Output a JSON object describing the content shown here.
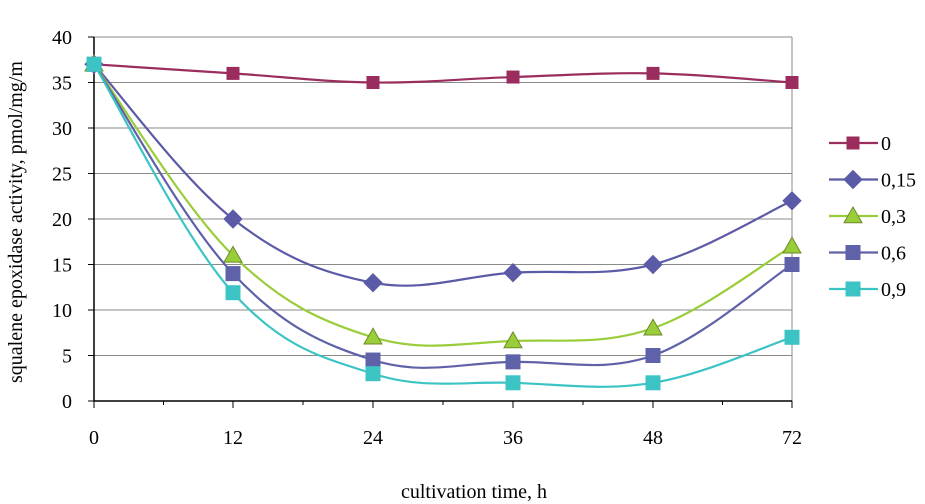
{
  "chart_data": {
    "type": "line",
    "x_categories": [
      "0",
      "12",
      "24",
      "36",
      "48",
      "72"
    ],
    "xlabel": "cultivation time, h",
    "ylabel": "squalene epoxidase activity, pmol/mg/m",
    "ylim": [
      0,
      40
    ],
    "yticks": [
      "0",
      "5",
      "10",
      "15",
      "20",
      "25",
      "30",
      "35",
      "40"
    ],
    "grid": "horizontal",
    "legend_position": "right",
    "smooth": true,
    "series": [
      {
        "name": "0",
        "color": "#9B2D5E",
        "marker": "square",
        "values": [
          37,
          36,
          35,
          35.6,
          36,
          35
        ]
      },
      {
        "name": "0,15",
        "color": "#5B5AA6",
        "marker": "diamond",
        "values": [
          37,
          20,
          13,
          14.1,
          15,
          22
        ]
      },
      {
        "name": "0,3",
        "color": "#9ACD3A",
        "marker": "triangle",
        "values": [
          37,
          16,
          7,
          6.6,
          8,
          17
        ]
      },
      {
        "name": "0,6",
        "color": "#5F62A8",
        "marker": "square",
        "values": [
          37,
          14,
          4.5,
          4.3,
          5,
          15
        ]
      },
      {
        "name": "0,9",
        "color": "#3CC4C4",
        "marker": "square",
        "values": [
          37,
          11.9,
          3,
          2,
          2,
          7
        ]
      }
    ]
  }
}
